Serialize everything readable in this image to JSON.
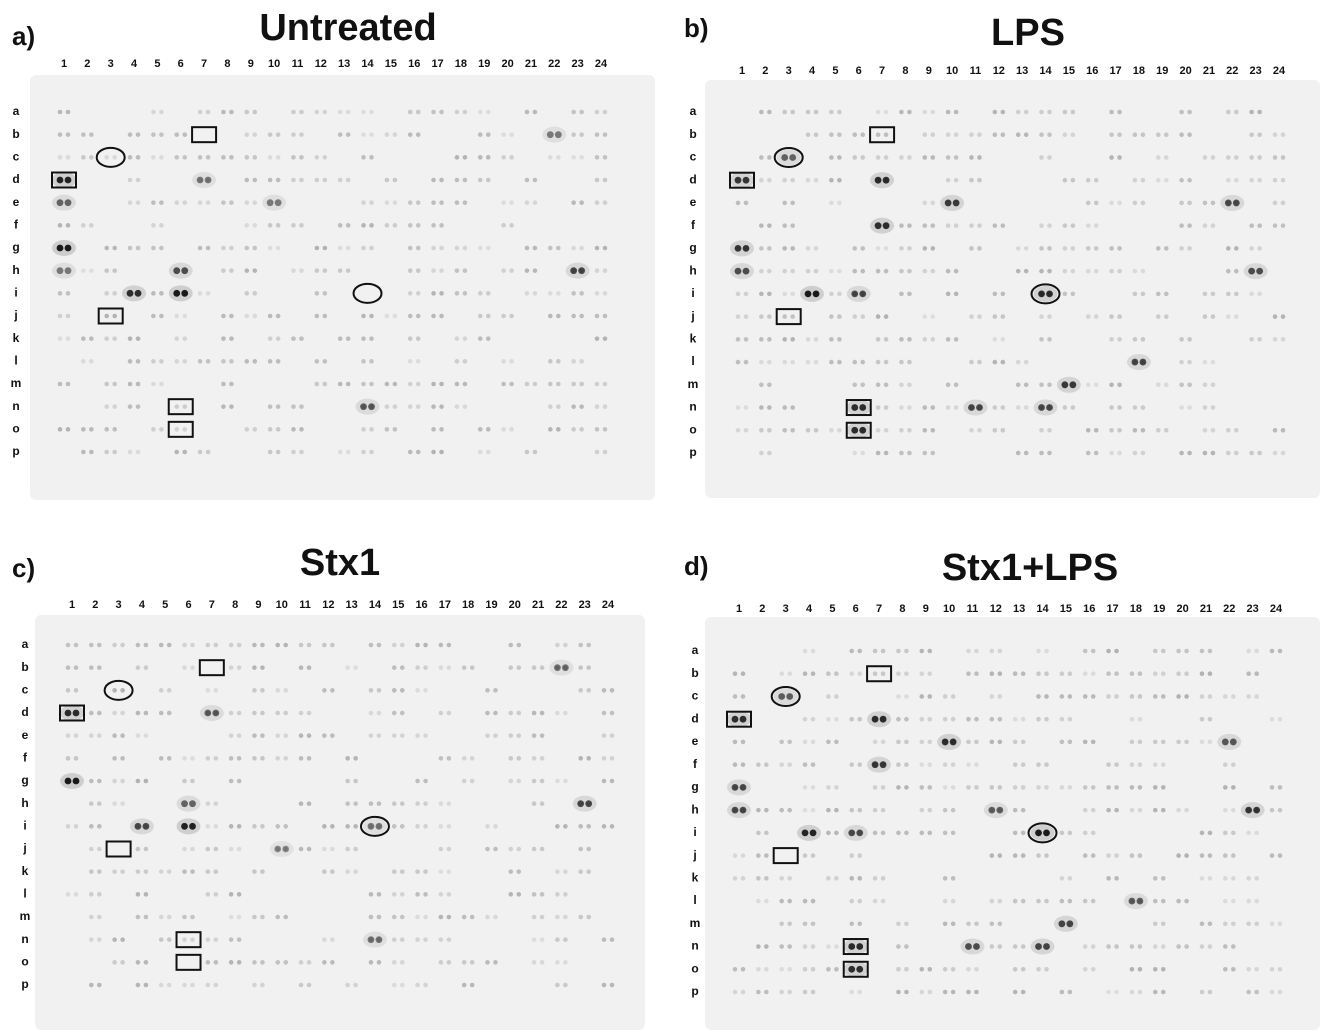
{
  "panels": [
    {
      "letter": "a)",
      "title": "Untreated",
      "columns": [
        "1",
        "2",
        "3",
        "4",
        "5",
        "6",
        "7",
        "8",
        "9",
        "10",
        "11",
        "12",
        "13",
        "14",
        "15",
        "16",
        "17",
        "18",
        "19",
        "20",
        "21",
        "22",
        "23",
        "24"
      ],
      "rows": [
        "a",
        "b",
        "c",
        "d",
        "e",
        "f",
        "g",
        "h",
        "i",
        "j",
        "k",
        "l",
        "m",
        "n",
        "o",
        "p"
      ]
    },
    {
      "letter": "b)",
      "title": "LPS",
      "columns": [
        "1",
        "2",
        "3",
        "4",
        "5",
        "6",
        "7",
        "8",
        "9",
        "10",
        "11",
        "12",
        "13",
        "14",
        "15",
        "16",
        "17",
        "18",
        "19",
        "20",
        "21",
        "22",
        "23",
        "24"
      ],
      "rows": [
        "a",
        "b",
        "c",
        "d",
        "e",
        "f",
        "g",
        "h",
        "i",
        "j",
        "k",
        "l",
        "m",
        "n",
        "o",
        "p"
      ]
    },
    {
      "letter": "c)",
      "title": "Stx1",
      "columns": [
        "1",
        "2",
        "3",
        "4",
        "5",
        "6",
        "7",
        "8",
        "9",
        "10",
        "11",
        "12",
        "13",
        "14",
        "15",
        "16",
        "17",
        "18",
        "19",
        "20",
        "21",
        "22",
        "23",
        "24"
      ],
      "rows": [
        "a",
        "b",
        "c",
        "d",
        "e",
        "f",
        "g",
        "h",
        "i",
        "j",
        "k",
        "l",
        "m",
        "n",
        "o",
        "p"
      ]
    },
    {
      "letter": "d)",
      "title": "Stx1+LPS",
      "columns": [
        "1",
        "2",
        "3",
        "4",
        "5",
        "6",
        "7",
        "8",
        "9",
        "10",
        "11",
        "12",
        "13",
        "14",
        "15",
        "16",
        "17",
        "18",
        "19",
        "20",
        "21",
        "22",
        "23",
        "24"
      ],
      "rows": [
        "a",
        "b",
        "c",
        "d",
        "e",
        "f",
        "g",
        "h",
        "i",
        "j",
        "k",
        "l",
        "m",
        "n",
        "o",
        "p"
      ]
    }
  ]
}
